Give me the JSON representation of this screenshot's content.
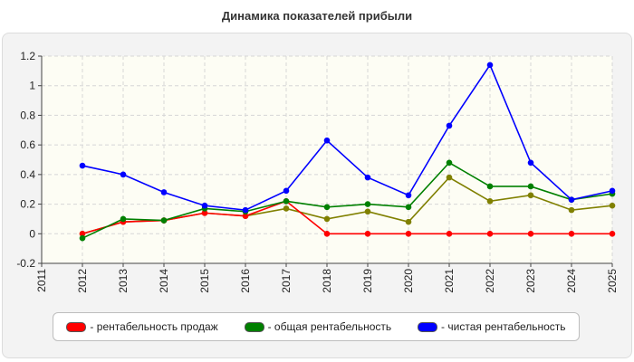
{
  "title": "Динамика показателей прибыли",
  "chart_data": {
    "type": "line",
    "title": "Динамика показателей прибыли",
    "xlabel": "",
    "ylabel": "",
    "x": [
      "2011",
      "2012",
      "2013",
      "2014",
      "2015",
      "2016",
      "2017",
      "2018",
      "2019",
      "2020",
      "2021",
      "2022",
      "2023",
      "2024",
      "2025"
    ],
    "ylim": [
      -0.2,
      1.2
    ],
    "yticks": [
      "1.2",
      "1",
      "0.8",
      "0.6",
      "0.4",
      "0.2",
      "0",
      "-0.2"
    ],
    "grid": true,
    "legend_position": "bottom",
    "series": [
      {
        "name": "рентабельность продаж",
        "color": "#ff0000",
        "values": [
          null,
          0.0,
          0.08,
          0.09,
          0.14,
          0.12,
          0.22,
          0.0,
          0.0,
          0.0,
          0.0,
          0.0,
          0.0,
          0.0,
          0.0
        ]
      },
      {
        "name": "общая рентабельность",
        "color": "#008000",
        "values": [
          null,
          -0.03,
          0.1,
          0.09,
          0.17,
          0.15,
          0.22,
          0.18,
          0.2,
          0.18,
          0.48,
          0.32,
          0.32,
          0.23,
          0.27
        ]
      },
      {
        "name": "чистая рентабельность",
        "color": "#0000ff",
        "values": [
          null,
          0.46,
          0.4,
          0.28,
          0.19,
          0.16,
          0.29,
          0.63,
          0.38,
          0.26,
          0.73,
          1.14,
          0.48,
          0.23,
          0.29
        ]
      },
      {
        "name": "",
        "color": "#808000",
        "values": [
          null,
          0.0,
          0.08,
          0.09,
          0.14,
          0.12,
          0.17,
          0.1,
          0.15,
          0.08,
          0.38,
          0.22,
          0.26,
          0.16,
          0.19
        ]
      }
    ]
  }
}
